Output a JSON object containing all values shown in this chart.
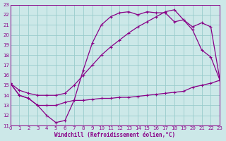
{
  "xlabel": "Windchill (Refroidissement éolien,°C)",
  "bg_color": "#cce8e8",
  "grid_color": "#99cccc",
  "line_color": "#880088",
  "xmin": 0,
  "xmax": 23,
  "ymin": 11,
  "ymax": 23,
  "xticks": [
    0,
    1,
    2,
    3,
    4,
    5,
    6,
    7,
    8,
    9,
    10,
    11,
    12,
    13,
    14,
    15,
    16,
    17,
    18,
    19,
    20,
    21,
    22,
    23
  ],
  "yticks": [
    11,
    12,
    13,
    14,
    15,
    16,
    17,
    18,
    19,
    20,
    21,
    22,
    23
  ],
  "line1_x": [
    0,
    1,
    2,
    3,
    4,
    5,
    6,
    7,
    8,
    9,
    10,
    11,
    12,
    13,
    14,
    15,
    16,
    17,
    18,
    19,
    20,
    21,
    22,
    23
  ],
  "line1_y": [
    15.2,
    14.0,
    13.7,
    13.0,
    13.0,
    13.0,
    13.3,
    13.5,
    13.5,
    13.6,
    13.7,
    13.7,
    13.8,
    13.8,
    13.9,
    14.0,
    14.1,
    14.2,
    14.3,
    14.4,
    14.8,
    15.0,
    15.2,
    15.5
  ],
  "line2_x": [
    0,
    1,
    2,
    3,
    4,
    5,
    6,
    7,
    8,
    9,
    10,
    11,
    12,
    13,
    14,
    15,
    16,
    17,
    18,
    19,
    20,
    21,
    22,
    23
  ],
  "line2_y": [
    15.2,
    14.0,
    13.7,
    13.0,
    12.0,
    11.3,
    11.5,
    13.5,
    16.5,
    19.2,
    21.0,
    21.8,
    22.2,
    22.3,
    22.0,
    22.3,
    22.2,
    22.2,
    21.3,
    21.5,
    20.5,
    18.5,
    17.8,
    15.5
  ],
  "line3_x": [
    0,
    1,
    2,
    3,
    4,
    5,
    6,
    7,
    8,
    9,
    10,
    11,
    12,
    13,
    14,
    15,
    16,
    17,
    18,
    19,
    20,
    21,
    22,
    23
  ],
  "line3_y": [
    15.2,
    14.5,
    14.2,
    14.0,
    14.0,
    14.0,
    14.2,
    15.0,
    16.0,
    17.0,
    18.0,
    18.8,
    19.5,
    20.2,
    20.8,
    21.3,
    21.8,
    22.3,
    22.5,
    21.5,
    20.8,
    21.2,
    20.8,
    15.5
  ]
}
